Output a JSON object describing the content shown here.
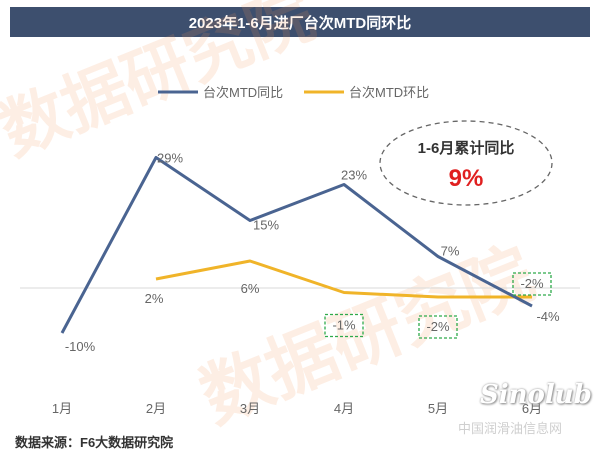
{
  "title": "2023年1-6月进厂台次MTD同环比",
  "watermark_text": "数据研究院",
  "source": "数据来源：F6大数据研究院",
  "logo": {
    "main": "Sinolub",
    "sub": "中国润滑油信息网"
  },
  "colors": {
    "yoy": "#4a6491",
    "mom": "#f0b429",
    "highlight": "#e02020",
    "dash_box": "#2eaa4a",
    "title_bg": "#3d4f6e"
  },
  "callout": {
    "label": "1-6月累计同比",
    "value": "9%"
  },
  "chart_data": {
    "type": "line",
    "categories": [
      "1月",
      "2月",
      "3月",
      "4月",
      "5月",
      "6月"
    ],
    "ylim": [
      -12,
      32
    ],
    "legend_position": "top",
    "series": [
      {
        "name": "台次MTD同比",
        "values": [
          -10,
          29,
          15,
          23,
          7,
          -4
        ],
        "labels": [
          "-10%",
          "29%",
          "15%",
          "23%",
          "7%",
          "-4%"
        ]
      },
      {
        "name": "台次MTD环比",
        "values": [
          null,
          2,
          6,
          -1,
          -2,
          -2
        ],
        "labels": [
          "",
          "2%",
          "6%",
          "-1%",
          "-2%",
          "-2%"
        ],
        "boxed": [
          false,
          false,
          false,
          true,
          true,
          true
        ]
      }
    ]
  }
}
